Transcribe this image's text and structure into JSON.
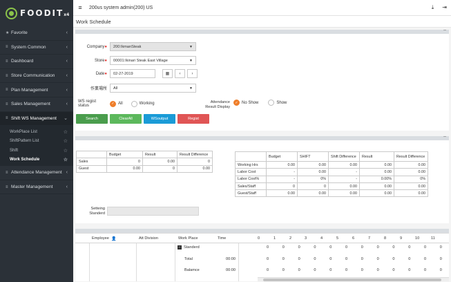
{
  "brand": {
    "name": "FOODIT",
    "suffix": "x4"
  },
  "sidebar": {
    "items": [
      {
        "label": "Favorite",
        "icon": "star-icon"
      },
      {
        "label": "System Common",
        "icon": "list-icon"
      },
      {
        "label": "Dashboard",
        "icon": "list-icon"
      },
      {
        "label": "Store Communication",
        "icon": "list-icon"
      },
      {
        "label": "Plan Management",
        "icon": "list-icon"
      },
      {
        "label": "Sales Management",
        "icon": "list-icon"
      },
      {
        "label": "Shift WS Management",
        "icon": "list-icon"
      }
    ],
    "sub_items": [
      {
        "label": "WorkPlace List"
      },
      {
        "label": "ShiftPattern List"
      },
      {
        "label": "Shift"
      },
      {
        "label": "Work Schedule"
      }
    ],
    "items_after": [
      {
        "label": "Attendance Management"
      },
      {
        "label": "Master Management"
      }
    ]
  },
  "topbar": {
    "user": "200us system admin(200) US"
  },
  "page": {
    "title": "Work Schedule"
  },
  "form": {
    "company_label": "Company",
    "company_value": "200:IkmanSteak",
    "store_label": "Store",
    "store_value": "00001:Ikinari Steak East Village",
    "date_label": "Date",
    "date_value": "02-27-2019",
    "workplace_label": "作業場所",
    "workplace_value": "All",
    "ws_status_label": "WS regist status",
    "ws_status_options": [
      "All",
      "Working"
    ],
    "attendance_label_1": "Attendance",
    "attendance_label_2": "Result Display",
    "attendance_options": [
      "No Show",
      "Show"
    ]
  },
  "buttons": {
    "search": "Search",
    "clear": "ClearAll",
    "wsoutput": "WSoutput",
    "regist": "Regist"
  },
  "budget_table": {
    "headers": [
      "",
      "Budget",
      "Result",
      "Result Difference"
    ],
    "rows": [
      [
        "Sales",
        "0",
        "0.00",
        "0"
      ],
      [
        "Guest",
        "0.00",
        "0",
        "0.00"
      ]
    ]
  },
  "hours_table": {
    "headers": [
      "",
      "Budget",
      "SHIFT",
      "Shift Difference",
      "Result",
      "Result Difference"
    ],
    "rows": [
      [
        "Working Hrs",
        "0.00",
        "0.00",
        "0.00",
        "0.00",
        "0.00"
      ],
      [
        "Labor Cost",
        "-",
        "0.00",
        "-",
        "0.00",
        "0.00"
      ],
      [
        "Labor Cost%",
        "-",
        "0%",
        "-",
        "0.00%",
        "0%"
      ],
      [
        "Sales/Staff",
        "0",
        "0",
        "0.00",
        "0.00",
        "0.00"
      ],
      [
        "Guest/Staff",
        "0.00",
        "0.00",
        "0.00",
        "0.00",
        "0.00"
      ]
    ]
  },
  "setting": {
    "label_1": "Setteing",
    "label_2": "Standerd"
  },
  "schedule": {
    "headers": [
      "Employee",
      "Att Division",
      "Work Place",
      "Time"
    ],
    "hours": [
      "0",
      "1",
      "2",
      "3",
      "4",
      "5",
      "6",
      "7",
      "8",
      "9",
      "10",
      "11"
    ],
    "rows": [
      {
        "place": "Standerd",
        "time": ""
      },
      {
        "place": "Total",
        "time": "00:00"
      },
      {
        "place": "Balamce",
        "time": "00:00"
      }
    ]
  },
  "colors": {
    "search": "#4a9d4d",
    "clear": "#5cb85c",
    "wsoutput": "#1a9bd7",
    "regist": "#e05555",
    "accent": "#ef7e2a"
  }
}
